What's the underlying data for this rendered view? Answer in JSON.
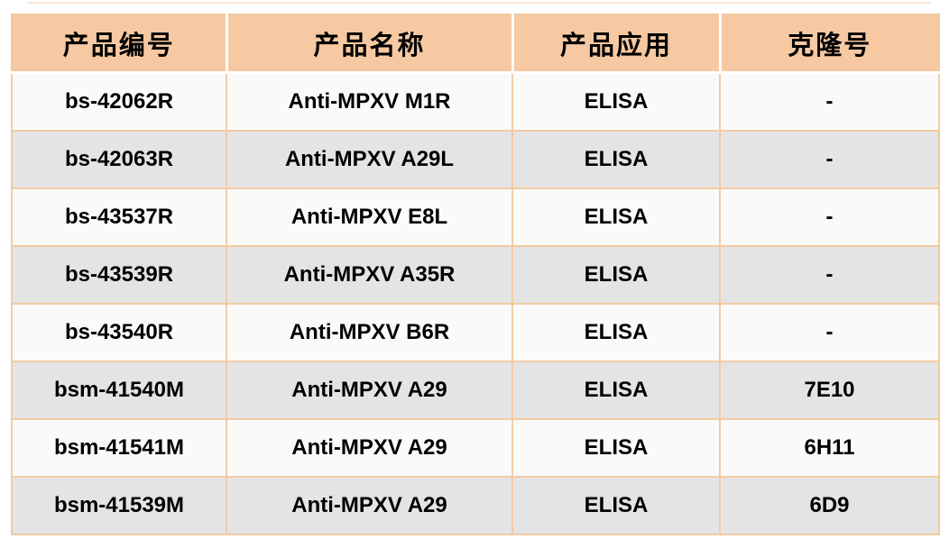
{
  "table": {
    "headers": [
      "产品编号",
      "产品名称",
      "产品应用",
      "克隆号"
    ],
    "rows": [
      {
        "product_code": "bs-42062R",
        "product_name": "Anti-MPXV M1R",
        "application": "ELISA",
        "clone": "-"
      },
      {
        "product_code": "bs-42063R",
        "product_name": "Anti-MPXV A29L",
        "application": "ELISA",
        "clone": "-"
      },
      {
        "product_code": "bs-43537R",
        "product_name": "Anti-MPXV E8L",
        "application": "ELISA",
        "clone": "-"
      },
      {
        "product_code": "bs-43539R",
        "product_name": "Anti-MPXV A35R",
        "application": "ELISA",
        "clone": "-"
      },
      {
        "product_code": "bs-43540R",
        "product_name": "Anti-MPXV B6R",
        "application": "ELISA",
        "clone": "-"
      },
      {
        "product_code": "bsm-41540M",
        "product_name": "Anti-MPXV A29",
        "application": "ELISA",
        "clone": "7E10"
      },
      {
        "product_code": "bsm-41541M",
        "product_name": "Anti-MPXV A29",
        "application": "ELISA",
        "clone": "6H11"
      },
      {
        "product_code": "bsm-41539M",
        "product_name": "Anti-MPXV A29",
        "application": "ELISA",
        "clone": "6D9"
      }
    ]
  },
  "colors": {
    "header_bg": "#F6C9A2",
    "row_light_bg": "#FBFAF9",
    "row_dark_bg": "#E5E4E4",
    "grid_border": "#F2CBA3",
    "outer_border": "#F0C8A0",
    "header_divider": "#FFFFFF",
    "text": "#000000",
    "page_bg": "#FFFFFF"
  }
}
